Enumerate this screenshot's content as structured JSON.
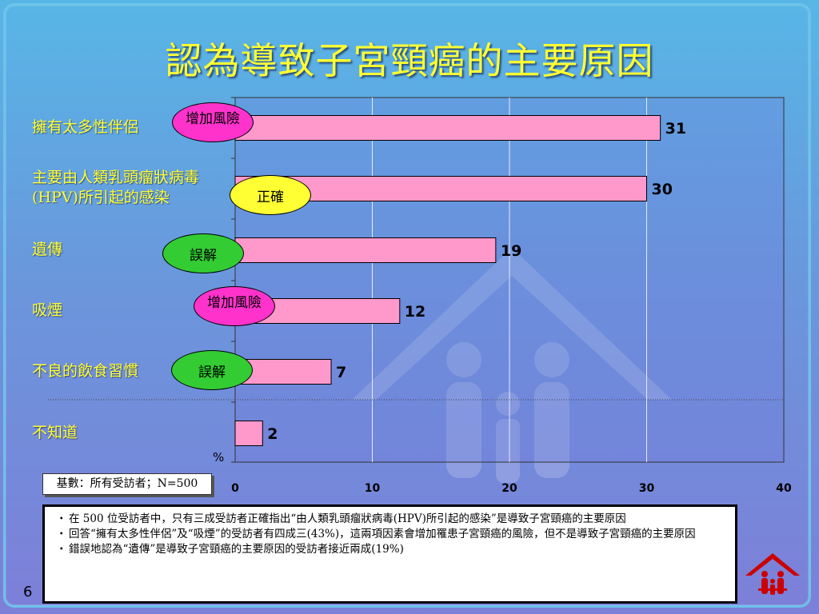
{
  "title": "認為導致子宮頸癌的主要原因",
  "page_number": "6",
  "base_note": "基數：所有受訪者；N=500",
  "unit_label": "%",
  "legend_tags": {
    "risk": "增加風險",
    "correct": "正確",
    "myth": "誤解"
  },
  "colors": {
    "bar": "#ff99cc",
    "title": "#ffff33",
    "tag_risk": "#ff33cc",
    "tag_correct": "#ffff33",
    "tag_myth": "#33cc33"
  },
  "chart_data": {
    "type": "bar",
    "orientation": "horizontal",
    "title": "認為導致子宮頸癌的主要原因",
    "categories": [
      "擁有太多性伴侶",
      "主要由人類乳頭瘤狀病毒(HPV)所引起的感染",
      "遺傳",
      "吸煙",
      "不良的飲食習慣",
      "不知道"
    ],
    "category_lines": [
      [
        "擁有太多性伴侶"
      ],
      [
        "主要由人類乳頭瘤狀病毒",
        "(HPV)所引起的感染"
      ],
      [
        "遺傳"
      ],
      [
        "吸煙"
      ],
      [
        "不良的飲食習慣"
      ],
      [
        "不知道"
      ]
    ],
    "values": [
      31,
      30,
      19,
      12,
      7,
      2
    ],
    "tags": [
      "增加風險",
      "正確",
      "誤解",
      "增加風險",
      "誤解",
      ""
    ],
    "xlim": [
      0,
      40
    ],
    "xticks": [
      0,
      10,
      20,
      30,
      40
    ],
    "xlabel": "%",
    "grid": true
  },
  "notes": [
    "在 500 位受訪者中，只有三成受訪者正確指出“由人類乳頭瘤狀病毒(HPV)所引起的感染”是導致子宮頸癌的主要原因",
    "回答“擁有太多性伴侶”及“吸煙”的受訪者有四成三(43%)，這兩項因素會增加罹患子宮頸癌的風險，但不是導致子宮頸癌的主要原因",
    "錯誤地認為“遺傳”是導致子宮頸癌的主要原因的受訪者接近兩成(19%)"
  ]
}
